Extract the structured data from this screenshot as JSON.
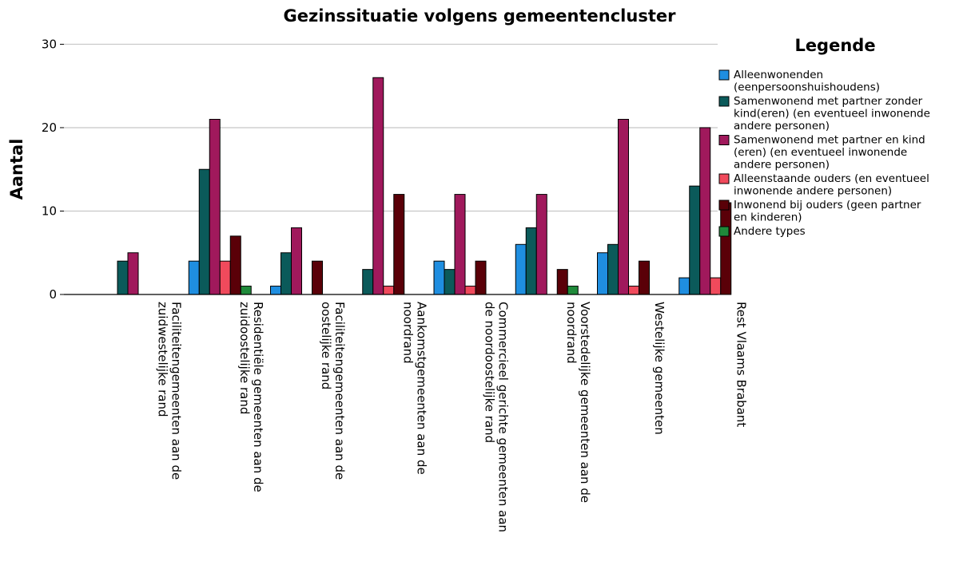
{
  "chart_data": {
    "type": "bar",
    "title": "Gezinssituatie volgens gemeentencluster",
    "xlabel": "",
    "ylabel": "Aantal",
    "ylim": [
      0,
      31
    ],
    "yticks": [
      0,
      10,
      20,
      30
    ],
    "grid": true,
    "legend_title": "Legende",
    "legend_position": "right",
    "categories": [
      [
        "Faciliteitengemeenten aan de",
        "zuidwestelijke rand"
      ],
      [
        "Residentiële gemeenten aan de",
        "zuidoostelijke rand"
      ],
      [
        "Faciliteitengemeenten aan de",
        "oostelijke rand"
      ],
      [
        "Aankomstgemeenten aan de",
        "noordrand"
      ],
      [
        "Commercieel gerichte gemeenten aan",
        "de noordoostelijke rand"
      ],
      [
        "Voorstedelijke gemeenten aan de",
        "noordrand"
      ],
      [
        "Westelijke gemeenten"
      ],
      [
        "Rest Vlaams Brabant"
      ]
    ],
    "series": [
      {
        "name": "Alleenwonenden (eenpersoonshuishoudens)",
        "legend_lines": [
          "Alleenwonenden",
          "(eenpersoonshuishoudens)"
        ],
        "color": "#1f8ee0",
        "values": [
          null,
          4,
          1,
          null,
          4,
          6,
          5,
          2
        ]
      },
      {
        "name": "Samenwonend met partner zonder kind(eren) (en eventueel inwonende andere personen)",
        "legend_lines": [
          "Samenwonend met partner zonder",
          "kind(eren) (en eventueel inwonende",
          "andere personen)"
        ],
        "color": "#0b5a5a",
        "values": [
          4,
          15,
          5,
          3,
          3,
          8,
          6,
          13
        ]
      },
      {
        "name": "Samenwonend met partner en kind (eren) (en eventueel inwonende andere personen)",
        "legend_lines": [
          "Samenwonend met partner en kind",
          "(eren) (en eventueel inwonende",
          "andere personen)"
        ],
        "color": "#a0195c",
        "values": [
          5,
          21,
          8,
          26,
          12,
          12,
          21,
          20
        ]
      },
      {
        "name": "Alleenstaande ouders (en eventueel inwonende andere personen)",
        "legend_lines": [
          "Alleenstaande ouders (en eventueel",
          "inwonende andere personen)"
        ],
        "color": "#f04a5c",
        "values": [
          null,
          4,
          null,
          1,
          1,
          null,
          1,
          2
        ]
      },
      {
        "name": "Inwonend bij ouders (geen partner en kinderen)",
        "legend_lines": [
          "Inwonend bij ouders (geen partner",
          "en kinderen)"
        ],
        "color": "#5a0008",
        "values": [
          null,
          7,
          4,
          12,
          4,
          3,
          4,
          11
        ]
      },
      {
        "name": "Andere types",
        "legend_lines": [
          "Andere types"
        ],
        "color": "#1f8a3a",
        "values": [
          null,
          1,
          null,
          null,
          null,
          1,
          null,
          null
        ]
      }
    ]
  }
}
